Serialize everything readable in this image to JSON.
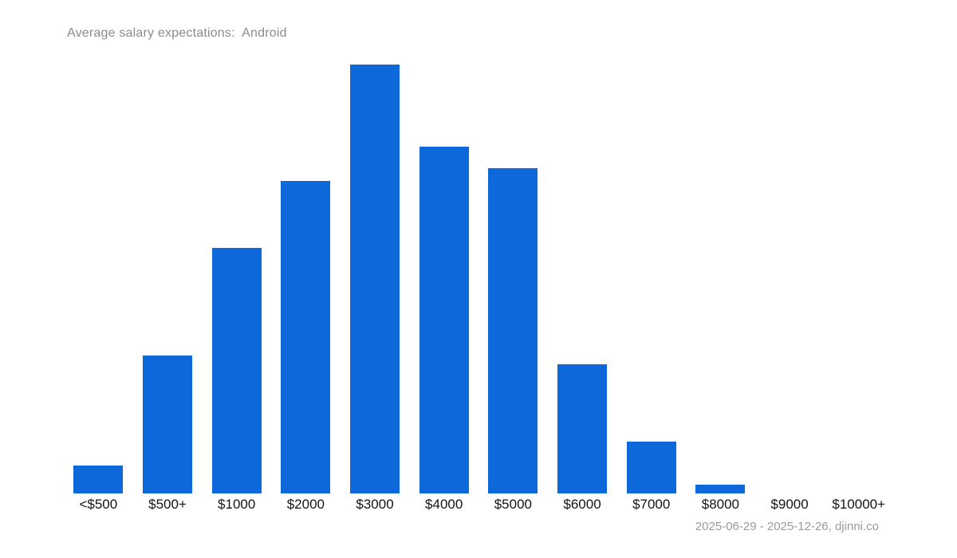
{
  "title": "Average salary expectations:  Android",
  "footer": "2025-06-29 - 2025-12-26, djinni.co",
  "colors": {
    "bar": "#0d68d9",
    "title_text": "#8b8b8b",
    "footer_text": "#9a9a9a",
    "label_text": "#141414",
    "background": "#ffffff"
  },
  "chart_data": {
    "type": "bar",
    "title": "Average salary expectations:  Android",
    "categories": [
      "<$500",
      "$500+",
      "$1000",
      "$2000",
      "$3000",
      "$4000",
      "$5000",
      "$6000",
      "$7000",
      "$8000",
      "$9000",
      "$10000+"
    ],
    "values": [
      35,
      173,
      308,
      392,
      538,
      435,
      408,
      162,
      65,
      11,
      0,
      0
    ],
    "values_unit": "relative height (y-axis has no tick labels; values estimated from bar heights, max = 538)",
    "xlabel": "",
    "ylabel": "",
    "ylim": [
      0,
      538
    ],
    "grid": false,
    "legend": null,
    "bar_color": "#0d68d9",
    "date_range": "2025-06-29 - 2025-12-26",
    "source": "djinni.co"
  }
}
